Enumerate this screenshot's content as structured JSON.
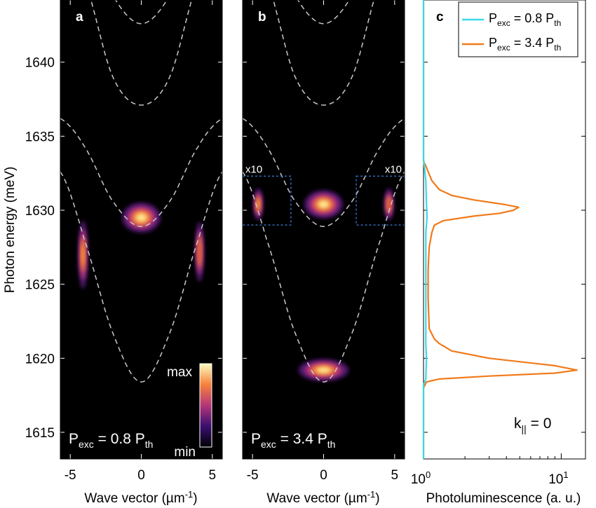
{
  "figure": {
    "ylabel": "Photon energy (meV)",
    "yticks": [
      1615,
      1620,
      1625,
      1630,
      1635,
      1640
    ]
  },
  "colors": {
    "accent_cyan": "#39d9e6",
    "accent_orange": "#f07a1a",
    "dashed": "#c8c8c8",
    "box": "#3a7bd5"
  },
  "chart_data": [
    {
      "type": "heatmap",
      "panel_label": "a",
      "xlabel": "Wave vector (µm⁻¹)",
      "xlim": [
        -5.7,
        5.7
      ],
      "ylim": [
        1613.2,
        1644.2
      ],
      "xticks": [
        "-5",
        "0",
        "5"
      ],
      "annotation": {
        "P": "P",
        "exc": "exc",
        "eq": " = 0.8 P",
        "th": "th"
      },
      "colorbar": {
        "max_label": "max",
        "min_label": "min"
      },
      "dispersion_curves": [
        {
          "name": "lower",
          "k": [
            -5.7,
            -4,
            -2,
            0,
            2,
            4,
            5.7
          ],
          "E": [
            1632.6,
            1628.0,
            1621.7,
            1618.4,
            1621.7,
            1628.0,
            1632.6
          ]
        },
        {
          "name": "mid",
          "k": [
            -5.7,
            -4,
            -2,
            0,
            2,
            4,
            5.7
          ],
          "E": [
            1636.2,
            1634.3,
            1630.6,
            1628.9,
            1630.6,
            1634.3,
            1636.2
          ]
        },
        {
          "name": "upper1",
          "k": [
            -5.7,
            -4,
            -2,
            0,
            2,
            4,
            5.7
          ],
          "E": [
            1648.0,
            1645.5,
            1639.0,
            1637.1,
            1639.0,
            1645.5,
            1648.0
          ]
        },
        {
          "name": "upper2",
          "k": [
            -5.7,
            -4,
            -2,
            0,
            2,
            4,
            5.7
          ],
          "E": [
            1652.0,
            1649.0,
            1644.5,
            1642.6,
            1644.5,
            1649.0,
            1652.0
          ]
        }
      ],
      "intensity_regions": [
        {
          "k_center": 0.0,
          "E_center": 1629.5,
          "k_width": 2.0,
          "E_width": 1.5,
          "intensity": 1.0
        },
        {
          "k_center": -4.1,
          "E_center": 1627.0,
          "k_width": 0.5,
          "E_width": 3.4,
          "intensity": 0.7
        },
        {
          "k_center": 4.1,
          "E_center": 1627.2,
          "k_width": 0.45,
          "E_width": 3.0,
          "intensity": 0.55
        }
      ]
    },
    {
      "type": "heatmap",
      "panel_label": "b",
      "xlabel": "Wave vector (µm⁻¹)",
      "xlim": [
        -5.7,
        5.7
      ],
      "ylim": [
        1613.2,
        1644.2
      ],
      "xticks": [
        "-5",
        "0",
        "5"
      ],
      "annotation": {
        "P": "P",
        "exc": "exc",
        "eq": " = 3.4 P",
        "th": "th"
      },
      "magnified_boxes": [
        {
          "label": "x10",
          "k_range": [
            -5.7,
            -2.3
          ],
          "E_range": [
            1629.0,
            1632.3
          ]
        },
        {
          "label": "x10",
          "k_range": [
            2.3,
            5.7
          ],
          "E_range": [
            1629.0,
            1632.3
          ]
        }
      ],
      "intensity_regions": [
        {
          "k_center": 0.0,
          "E_center": 1619.2,
          "k_width": 2.6,
          "E_width": 1.1,
          "intensity": 1.0
        },
        {
          "k_center": 0.0,
          "E_center": 1630.4,
          "k_width": 2.0,
          "E_width": 1.4,
          "intensity": 0.9
        },
        {
          "k_center": -4.6,
          "E_center": 1630.4,
          "k_width": 0.5,
          "E_width": 1.6,
          "intensity": 0.7
        },
        {
          "k_center": 4.6,
          "E_center": 1630.4,
          "k_width": 0.5,
          "E_width": 1.6,
          "intensity": 0.65
        }
      ]
    },
    {
      "type": "line",
      "panel_label": "c",
      "xlabel": "Photoluminescence (a. u.)",
      "x_scale": "log",
      "xlim": [
        1,
        15
      ],
      "xtick_labels": [
        "10",
        "10"
      ],
      "xtick_exponents": [
        "0",
        "1"
      ],
      "annotation": {
        "k": "k",
        "sub": "||",
        "eq": " = 0"
      },
      "series": [
        {
          "legend": {
            "P": "P",
            "exc": "exc",
            "eq": " = 0.8 P",
            "th": "th"
          },
          "color": "#39d9e6",
          "E": [
            1613.2,
            1618.2,
            1618.6,
            1620.0,
            1621.0,
            1628.5,
            1629.5,
            1630.5,
            1632.0,
            1633.5,
            1644.2
          ],
          "PL": [
            1.0,
            1.0,
            1.04,
            1.05,
            1.04,
            1.04,
            1.06,
            1.05,
            1.04,
            1.0,
            1.0
          ]
        },
        {
          "legend": {
            "P": "P",
            "exc": "exc",
            "eq": " = 3.4 P",
            "th": "th"
          },
          "color": "#f07a1a",
          "E": [
            1613.2,
            1618.0,
            1618.4,
            1618.6,
            1618.8,
            1619.0,
            1619.2,
            1619.5,
            1620.0,
            1620.5,
            1621.0,
            1621.3,
            1622.0,
            1624.0,
            1626.0,
            1627.5,
            1628.5,
            1629.0,
            1629.3,
            1629.6,
            1629.8,
            1630.0,
            1630.2,
            1630.4,
            1630.7,
            1631.0,
            1631.4,
            1632.0,
            1632.6,
            1633.0,
            1633.3,
            1634.0,
            1644.2
          ],
          "PL": [
            1.0,
            1.0,
            1.05,
            1.3,
            3.0,
            9.0,
            13.0,
            9.0,
            3.0,
            1.6,
            1.3,
            1.2,
            1.1,
            1.08,
            1.08,
            1.1,
            1.15,
            1.2,
            1.4,
            2.3,
            3.6,
            4.5,
            4.9,
            3.8,
            2.3,
            1.6,
            1.3,
            1.15,
            1.08,
            1.04,
            1.0,
            1.0,
            1.0
          ]
        }
      ]
    }
  ]
}
